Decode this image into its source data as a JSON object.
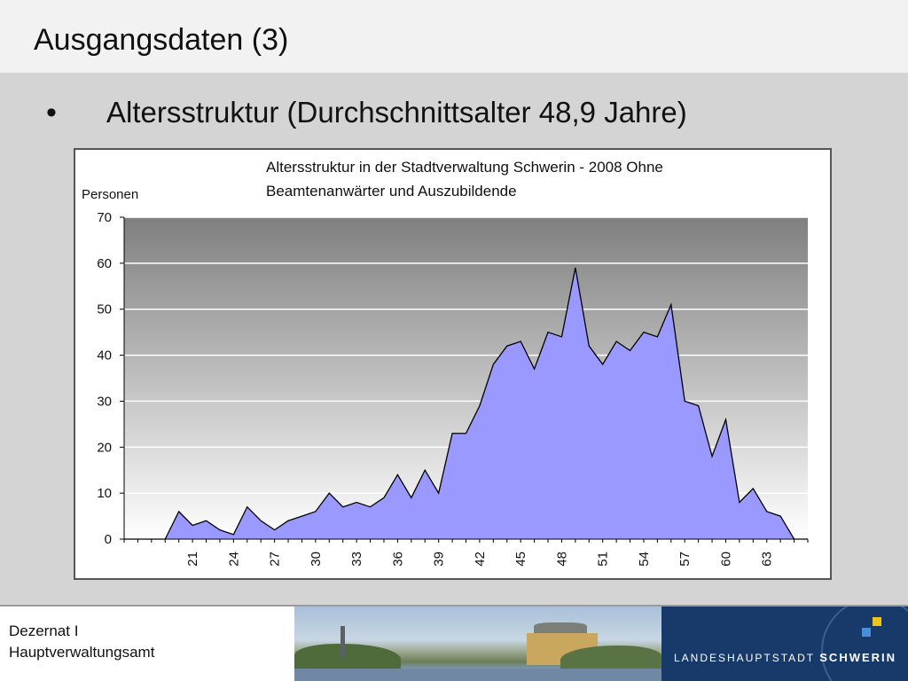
{
  "slide": {
    "title": "Ausgangsdaten (3)",
    "bullet_symbol": "•",
    "bullet_text": "Altersstruktur (Durchschnittsalter 48,9 Jahre)"
  },
  "footer": {
    "dept_line1": "Dezernat I",
    "dept_line2": "Hauptverwaltungsamt",
    "brand_prefix": "LANDESHAUPTSTADT",
    "brand_city": "SCHWERIN",
    "brand_square_colors": [
      "#f0c419",
      "#4a90d9"
    ]
  },
  "chart_data": {
    "type": "area",
    "title_line1": "Altersstruktur in der Stadtverwaltung Schwerin - 2008  Ohne",
    "title_line2": "Beamtenanwärter und Auszubildende",
    "ylabel": "Personen",
    "xlabel": "",
    "ylim": [
      0,
      70
    ],
    "yticks": [
      0,
      10,
      20,
      30,
      40,
      50,
      60,
      70
    ],
    "xticks": [
      21,
      24,
      27,
      30,
      33,
      36,
      39,
      42,
      45,
      48,
      51,
      54,
      57,
      60,
      63
    ],
    "x": [
      16,
      17,
      18,
      19,
      20,
      21,
      22,
      23,
      24,
      25,
      26,
      27,
      28,
      29,
      30,
      31,
      32,
      33,
      34,
      35,
      36,
      37,
      38,
      39,
      40,
      41,
      42,
      43,
      44,
      45,
      46,
      47,
      48,
      49,
      50,
      51,
      52,
      53,
      54,
      55,
      56,
      57,
      58,
      59,
      60,
      61,
      62,
      63,
      64,
      65,
      66
    ],
    "values": [
      0,
      0,
      0,
      0,
      6,
      3,
      4,
      2,
      1,
      7,
      4,
      2,
      4,
      5,
      6,
      10,
      7,
      8,
      7,
      9,
      14,
      9,
      15,
      10,
      23,
      23,
      29,
      38,
      42,
      43,
      37,
      45,
      44,
      59,
      42,
      38,
      43,
      41,
      45,
      44,
      51,
      30,
      29,
      18,
      26,
      8,
      11,
      6,
      5,
      0,
      0
    ],
    "colors": {
      "fill": "#9999ff",
      "line": "#000000"
    },
    "grid": true,
    "legend": "none"
  }
}
